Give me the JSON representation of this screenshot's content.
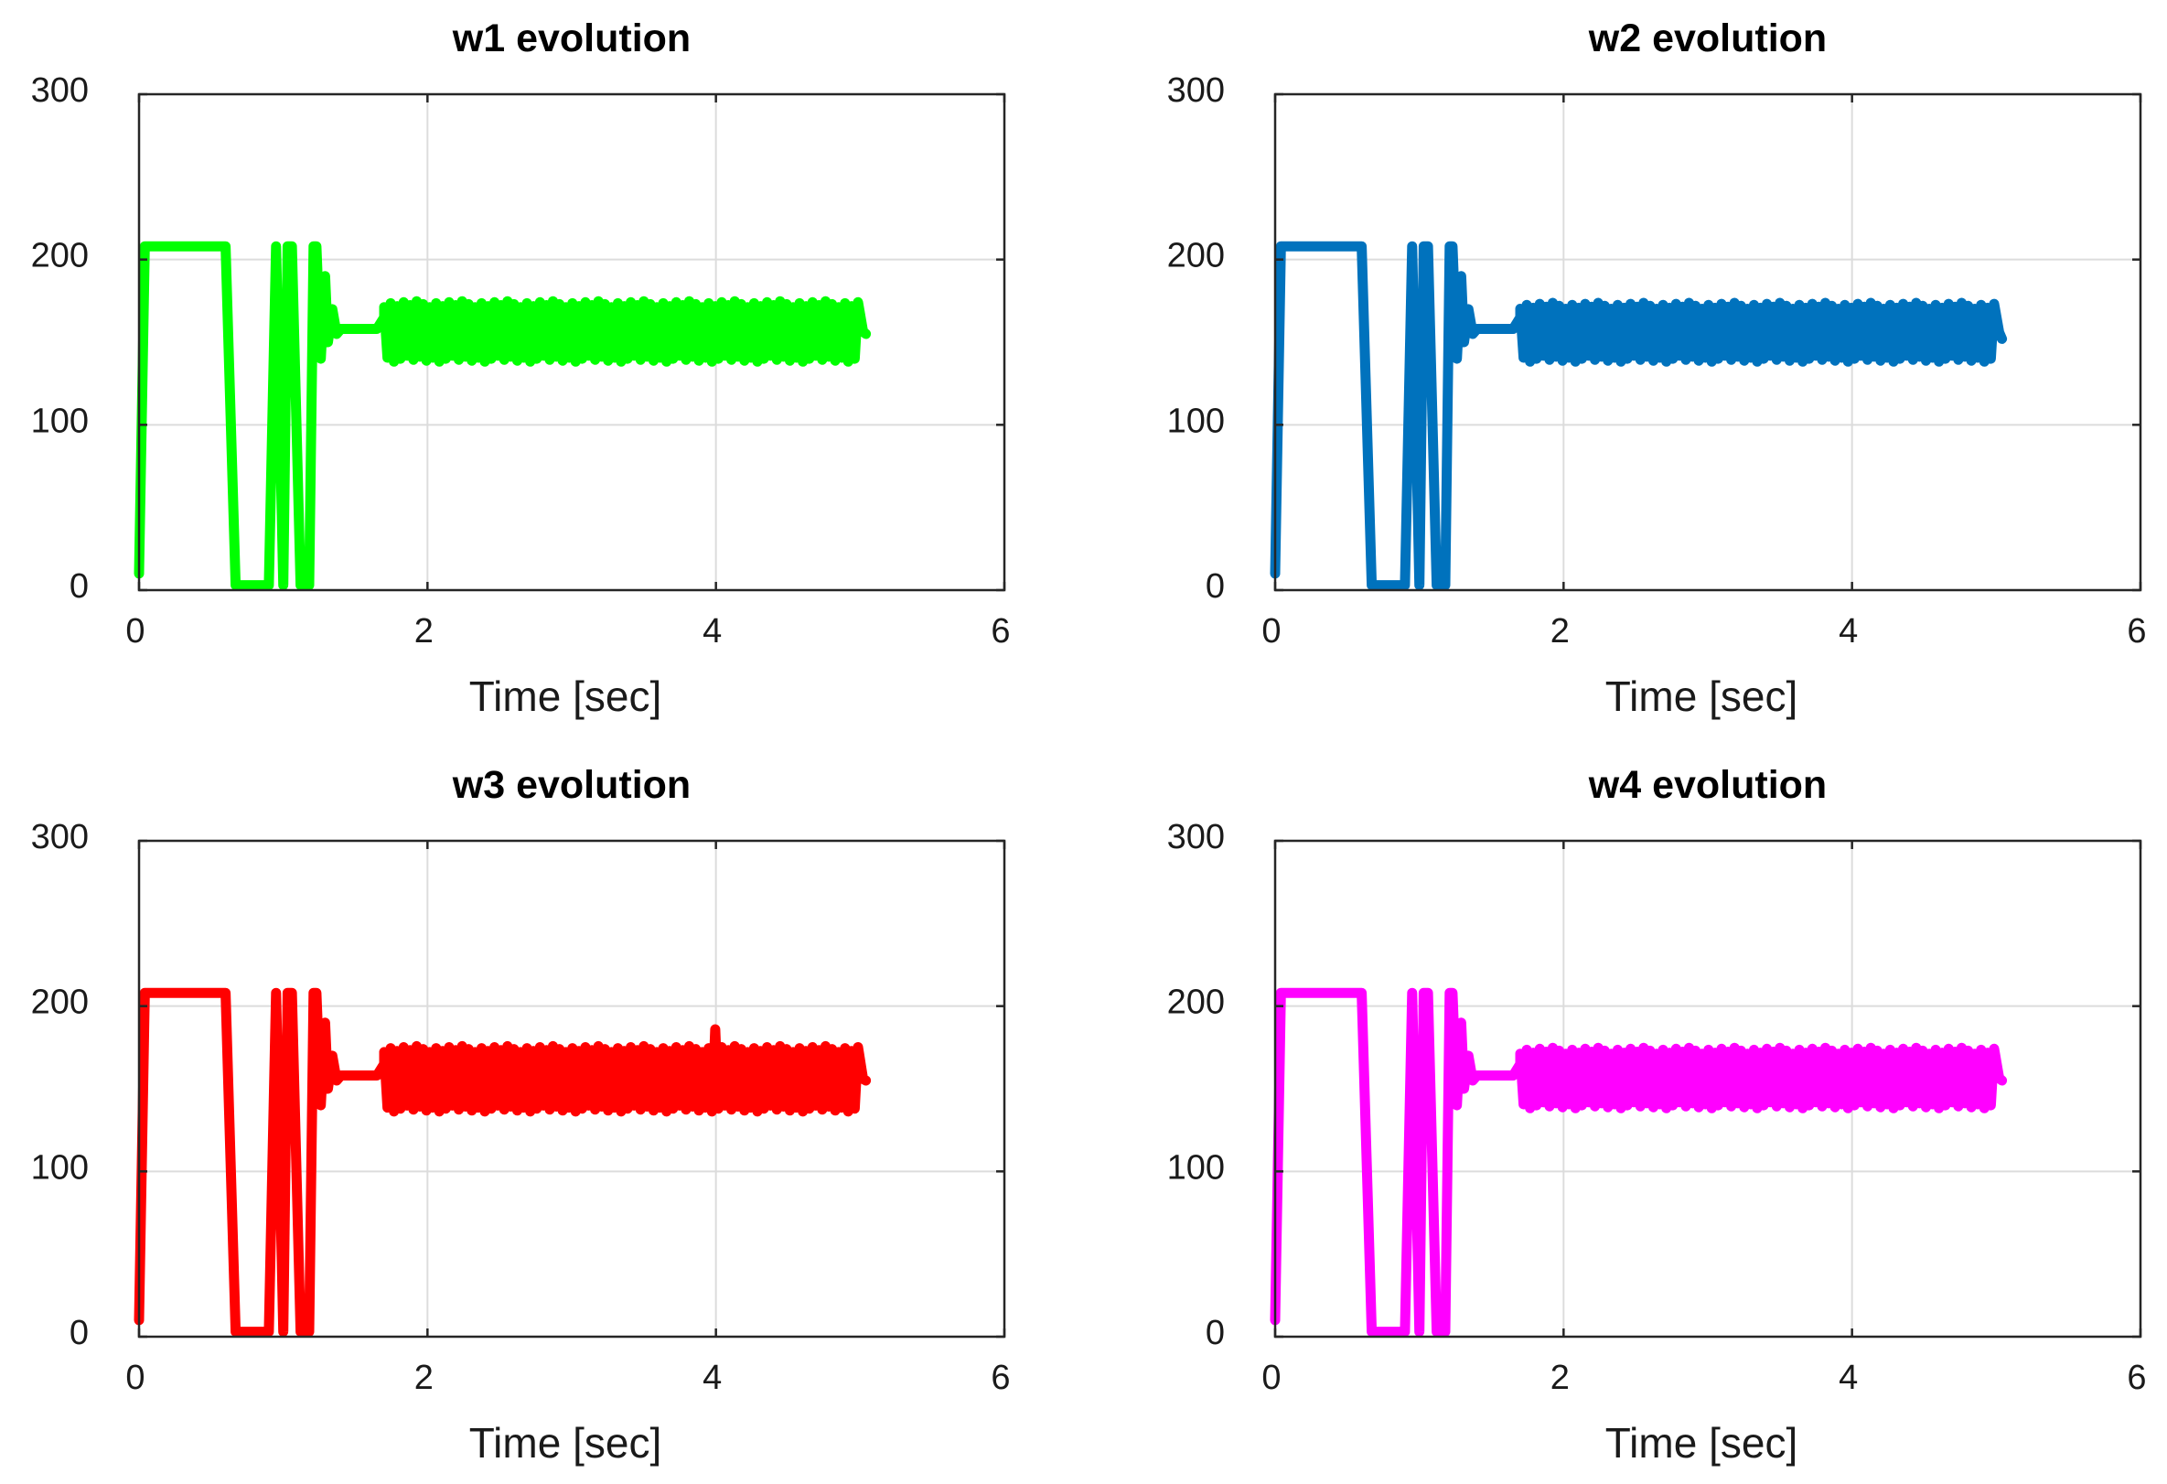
{
  "figure_title": "",
  "chart_data": [
    {
      "type": "line",
      "title": "w1 evolution",
      "xlabel": "Time [sec]",
      "ylabel": "",
      "xlim": [
        0,
        6
      ],
      "ylim": [
        0,
        300
      ],
      "xticks": [
        0,
        2,
        4,
        6
      ],
      "yticks": [
        0,
        100,
        200,
        300
      ],
      "grid": true,
      "color": "#00ff00",
      "series": [
        {
          "name": "w1",
          "x": [
            0,
            0.04,
            0.6,
            0.67,
            0.9,
            0.95,
            1.0,
            1.03,
            1.06,
            1.12,
            1.18,
            1.21,
            1.23,
            1.26,
            1.29,
            1.31,
            1.34,
            1.37,
            1.4,
            1.5,
            1.65,
            1.7
          ],
          "y": [
            10,
            208,
            208,
            3,
            3,
            208,
            3,
            208,
            208,
            3,
            3,
            208,
            208,
            140,
            190,
            150,
            170,
            155,
            158,
            158,
            158,
            165
          ],
          "oscillation": {
            "start": 1.7,
            "end": 5.0,
            "period": 0.045,
            "low": 140,
            "high": 173,
            "end_value": 155
          }
        }
      ]
    },
    {
      "type": "line",
      "title": "w2 evolution",
      "xlabel": "Time [sec]",
      "ylabel": "",
      "xlim": [
        0,
        6
      ],
      "ylim": [
        0,
        300
      ],
      "xticks": [
        0,
        2,
        4,
        6
      ],
      "yticks": [
        0,
        100,
        200,
        300
      ],
      "grid": true,
      "color": "#0072bd",
      "series": [
        {
          "name": "w2",
          "x": [
            0,
            0.04,
            0.6,
            0.67,
            0.9,
            0.95,
            1.0,
            1.03,
            1.06,
            1.12,
            1.18,
            1.21,
            1.23,
            1.26,
            1.29,
            1.31,
            1.34,
            1.37,
            1.4,
            1.5,
            1.65,
            1.7
          ],
          "y": [
            10,
            208,
            208,
            3,
            3,
            208,
            3,
            208,
            208,
            3,
            3,
            208,
            208,
            140,
            190,
            150,
            170,
            155,
            158,
            158,
            158,
            165
          ],
          "oscillation": {
            "start": 1.7,
            "end": 5.0,
            "period": 0.045,
            "low": 140,
            "high": 172,
            "end_value": 152
          }
        }
      ]
    },
    {
      "type": "line",
      "title": "w3 evolution",
      "xlabel": "Time [sec]",
      "ylabel": "",
      "xlim": [
        0,
        6
      ],
      "ylim": [
        0,
        300
      ],
      "xticks": [
        0,
        2,
        4,
        6
      ],
      "yticks": [
        0,
        100,
        200,
        300
      ],
      "grid": true,
      "color": "#ff0000",
      "series": [
        {
          "name": "w3",
          "x": [
            0,
            0.04,
            0.6,
            0.67,
            0.9,
            0.95,
            1.0,
            1.03,
            1.06,
            1.12,
            1.18,
            1.21,
            1.23,
            1.26,
            1.29,
            1.31,
            1.34,
            1.37,
            1.4,
            1.5,
            1.65,
            1.7
          ],
          "y": [
            10,
            208,
            208,
            3,
            3,
            208,
            3,
            208,
            208,
            3,
            3,
            208,
            208,
            140,
            190,
            150,
            170,
            155,
            158,
            158,
            158,
            165
          ],
          "oscillation": {
            "start": 1.7,
            "end": 5.0,
            "period": 0.045,
            "low": 138,
            "high": 174,
            "end_value": 155,
            "spike_x": 4.0,
            "spike_y": 186
          }
        }
      ]
    },
    {
      "type": "line",
      "title": "w4 evolution",
      "xlabel": "Time [sec]",
      "ylabel": "",
      "xlim": [
        0,
        6
      ],
      "ylim": [
        0,
        300
      ],
      "xticks": [
        0,
        2,
        4,
        6
      ],
      "yticks": [
        0,
        100,
        200,
        300
      ],
      "grid": true,
      "color": "#ff00ff",
      "series": [
        {
          "name": "w4",
          "x": [
            0,
            0.04,
            0.6,
            0.67,
            0.9,
            0.95,
            1.0,
            1.03,
            1.06,
            1.12,
            1.18,
            1.21,
            1.23,
            1.26,
            1.29,
            1.31,
            1.34,
            1.37,
            1.4,
            1.5,
            1.65,
            1.7
          ],
          "y": [
            10,
            208,
            208,
            3,
            3,
            208,
            3,
            208,
            208,
            3,
            3,
            208,
            208,
            140,
            190,
            150,
            170,
            155,
            158,
            158,
            158,
            165
          ],
          "oscillation": {
            "start": 1.7,
            "end": 5.0,
            "period": 0.045,
            "low": 140,
            "high": 173,
            "end_value": 155
          }
        }
      ]
    }
  ]
}
